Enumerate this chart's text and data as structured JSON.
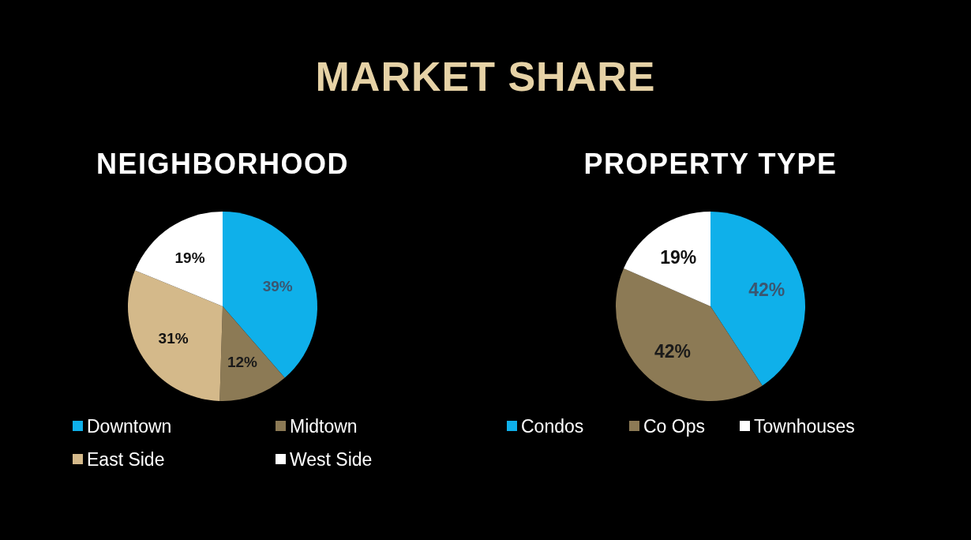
{
  "chart_data": [
    {
      "type": "other",
      "title": "MARKET SHARE"
    },
    {
      "type": "pie",
      "title": "NEIGHBORHOOD",
      "categories": [
        "Downtown",
        "Midtown",
        "East Side",
        "West Side"
      ],
      "values": [
        39,
        12,
        31,
        19
      ],
      "colors": [
        "#0fb0ea",
        "#8c7a55",
        "#d4b98a",
        "#ffffff"
      ],
      "value_labels": [
        "39%",
        "12%",
        "31%",
        "19%"
      ],
      "legend": "bottom"
    },
    {
      "type": "pie",
      "title": "PROPERTY TYPE",
      "categories": [
        "Condos",
        "Co Ops",
        "Townhouses"
      ],
      "values": [
        42,
        42,
        19
      ],
      "colors": [
        "#0fb0ea",
        "#8c7a55",
        "#ffffff"
      ],
      "value_labels": [
        "42%",
        "42%",
        "19%"
      ],
      "legend": "bottom"
    }
  ]
}
